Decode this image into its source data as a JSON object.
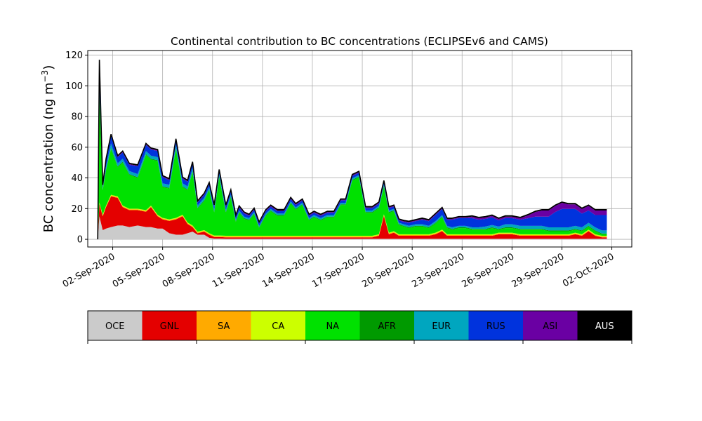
{
  "chart_data": {
    "type": "area",
    "stacked": true,
    "title": "Continental contribution to BC concentrations (ECLIPSEv6 and CAMS)",
    "ylabel": "BC concentration (ng m",
    "ylabel_superscript": "−3",
    "ylabel_close": ")",
    "ylim": [
      -5,
      123
    ],
    "xlim": [
      -1.5,
      31.2
    ],
    "yticks": [
      0,
      20,
      40,
      60,
      80,
      100,
      120
    ],
    "xticks": [
      {
        "x": 0,
        "label": "02-Sep-2020"
      },
      {
        "x": 3,
        "label": "05-Sep-2020"
      },
      {
        "x": 6,
        "label": "08-Sep-2020"
      },
      {
        "x": 9,
        "label": "11-Sep-2020"
      },
      {
        "x": 12,
        "label": "14-Sep-2020"
      },
      {
        "x": 15,
        "label": "17-Sep-2020"
      },
      {
        "x": 18,
        "label": "20-Sep-2020"
      },
      {
        "x": 21,
        "label": "23-Sep-2020"
      },
      {
        "x": 24,
        "label": "26-Sep-2020"
      },
      {
        "x": 27,
        "label": "29-Sep-2020"
      },
      {
        "x": 30,
        "label": "02-Oct-2020"
      }
    ],
    "grid": true,
    "x_days_since_02_sep_2020": [
      -0.9,
      -0.8,
      -0.6,
      -0.4,
      -0.1,
      0.3,
      0.6,
      1.0,
      1.5,
      2.0,
      2.3,
      2.7,
      3.0,
      3.4,
      3.8,
      4.2,
      4.5,
      4.8,
      5.1,
      5.5,
      5.8,
      6.1,
      6.4,
      6.8,
      7.1,
      7.4,
      7.6,
      7.9,
      8.2,
      8.5,
      8.8,
      9.2,
      9.5,
      9.9,
      10.3,
      10.7,
      11.0,
      11.4,
      11.8,
      12.1,
      12.5,
      12.9,
      13.3,
      13.7,
      14.0,
      14.4,
      14.8,
      15.2,
      15.6,
      16.0,
      16.3,
      16.6,
      16.9,
      17.2,
      17.5,
      17.8,
      18.2,
      18.6,
      19.0,
      19.4,
      19.8,
      20.1,
      20.4,
      20.8,
      21.2,
      21.6,
      22.0,
      22.4,
      22.8,
      23.2,
      23.6,
      24.0,
      24.5,
      25.0,
      25.4,
      25.8,
      26.2,
      26.6,
      27.0,
      27.4,
      27.8,
      28.2,
      28.6,
      29.0,
      29.4,
      29.7
    ],
    "series": [
      {
        "name": "OCE",
        "color": "#cbcbcb",
        "values": [
          0,
          15,
          6,
          7,
          8,
          9,
          9,
          8,
          9,
          8,
          8,
          7,
          7,
          4,
          3,
          3,
          4,
          5,
          3,
          3,
          1,
          0.5,
          0.5,
          0.3,
          0.3,
          0.3,
          0.3,
          0.3,
          0.3,
          0.3,
          0.3,
          0.3,
          0.3,
          0.3,
          0.3,
          0.3,
          0.3,
          0.3,
          0.3,
          0.3,
          0.3,
          0.3,
          0.3,
          0.3,
          0.3,
          0.3,
          0.3,
          0.3,
          0.3,
          0.3,
          0.3,
          0.3,
          0.3,
          0.3,
          0.3,
          0.3,
          0.3,
          0.3,
          0.3,
          0.3,
          0.3,
          0.3,
          0.3,
          0.3,
          0.3,
          0.3,
          0.3,
          0.3,
          0.3,
          0.3,
          0.3,
          0.3,
          0.3,
          0.3,
          0.3,
          0.3,
          0.3,
          0.3,
          0.3,
          0.3,
          0.3,
          0.3,
          0.3,
          0.3,
          0.3,
          0.3
        ]
      },
      {
        "name": "GNL",
        "color": "#e40000",
        "values": [
          0,
          8,
          9,
          14,
          20,
          18,
          12,
          11,
          10,
          10,
          13,
          8,
          6,
          8,
          10,
          12,
          6,
          3,
          1,
          2,
          2,
          1,
          1,
          1,
          1,
          1,
          1,
          1,
          1,
          1,
          1,
          1,
          1,
          1,
          1,
          1,
          1,
          1,
          1,
          1,
          1,
          1,
          1,
          1,
          1,
          1,
          1,
          1,
          1,
          2,
          15,
          3,
          4,
          2,
          2,
          2,
          2,
          2,
          2,
          3,
          5,
          2,
          2,
          2,
          2,
          2,
          2,
          2,
          2,
          3,
          3,
          3,
          2,
          2,
          2,
          2,
          2,
          2,
          2,
          2,
          3,
          2,
          5,
          2,
          1,
          1
        ]
      },
      {
        "name": "SA",
        "color": "#ffaa00",
        "values": [
          0,
          0.5,
          0.5,
          0.5,
          0.5,
          0.5,
          0.5,
          0.5,
          0.5,
          0.5,
          0.5,
          0.5,
          0.5,
          0.5,
          0.5,
          0.5,
          0.5,
          0.5,
          0.5,
          0.5,
          0.5,
          0.5,
          0.5,
          0.5,
          0.5,
          0.5,
          0.5,
          0.5,
          0.5,
          0.5,
          0.5,
          0.5,
          0.5,
          0.5,
          0.5,
          0.5,
          0.5,
          0.5,
          0.5,
          0.5,
          0.5,
          0.5,
          0.5,
          0.5,
          0.5,
          0.5,
          0.5,
          0.5,
          0.5,
          0.5,
          0.5,
          0.5,
          0.5,
          0.5,
          0.5,
          0.5,
          0.5,
          0.5,
          0.5,
          0.5,
          0.5,
          0.5,
          0.5,
          0.5,
          0.5,
          0.5,
          0.5,
          0.5,
          0.5,
          0.5,
          0.5,
          0.5,
          0.5,
          0.5,
          0.5,
          0.5,
          0.5,
          0.5,
          0.5,
          0.5,
          0.5,
          0.5,
          0.5,
          0.5,
          0.5,
          0.5
        ]
      },
      {
        "name": "CA",
        "color": "#ccff00",
        "values": [
          0,
          0.5,
          0.5,
          0.5,
          0.5,
          0.5,
          0.5,
          0.5,
          0.5,
          0.5,
          0.5,
          0.5,
          0.5,
          0.5,
          0.5,
          0.5,
          0.5,
          0.5,
          0.5,
          0.5,
          0.5,
          0.5,
          0.5,
          0.5,
          0.5,
          0.5,
          0.5,
          0.5,
          0.5,
          0.5,
          0.5,
          0.5,
          0.5,
          0.5,
          0.5,
          0.5,
          0.5,
          0.5,
          0.5,
          0.5,
          0.5,
          0.5,
          0.5,
          0.5,
          0.5,
          0.5,
          0.5,
          0.5,
          0.5,
          0.5,
          0.5,
          0.5,
          0.5,
          0.5,
          0.5,
          0.5,
          0.5,
          0.5,
          0.5,
          0.5,
          0.5,
          0.5,
          0.5,
          0.5,
          0.5,
          0.5,
          0.5,
          0.5,
          0.5,
          0.5,
          0.5,
          0.5,
          0.5,
          0.5,
          0.5,
          0.5,
          0.5,
          0.5,
          0.5,
          0.5,
          0.5,
          0.5,
          0.5,
          0.5,
          0.5,
          0.5
        ]
      },
      {
        "name": "NA",
        "color": "#00e100",
        "values": [
          0,
          70,
          16,
          23,
          30,
          19,
          28,
          22,
          20,
          36,
          30,
          35,
          20,
          20,
          45,
          18,
          21,
          35,
          15,
          19,
          28,
          15,
          38,
          15,
          25,
          9,
          15,
          11,
          10,
          14,
          5,
          13,
          16,
          13,
          13,
          21,
          17,
          20,
          10,
          12,
          10,
          12,
          12,
          20,
          20,
          36,
          38,
          15,
          15,
          17,
          18,
          13,
          13,
          6,
          5,
          4,
          5,
          5,
          4,
          6,
          8,
          4,
          3,
          4,
          4,
          3,
          3,
          3,
          4,
          2,
          3,
          3,
          3,
          3,
          3,
          3,
          2,
          2,
          2,
          2,
          2,
          2,
          2,
          2,
          1,
          1
        ]
      },
      {
        "name": "AFR",
        "color": "#009a00",
        "values": [
          0,
          1,
          0.5,
          0.5,
          0.5,
          0.5,
          0.5,
          0.5,
          0.5,
          0.5,
          0.5,
          0.5,
          0.5,
          0.5,
          0.5,
          0.5,
          0.5,
          0.5,
          0.5,
          0.5,
          0.5,
          0.5,
          0.5,
          0.5,
          0.5,
          0.5,
          0.5,
          0.5,
          0.5,
          0.5,
          0.5,
          0.5,
          0.5,
          0.5,
          0.5,
          0.5,
          0.5,
          0.5,
          0.5,
          0.5,
          0.5,
          0.5,
          0.5,
          0.5,
          0.5,
          0.5,
          0.5,
          0.5,
          0.5,
          0.5,
          0.5,
          0.5,
          0.5,
          0.5,
          0.5,
          0.5,
          0.5,
          0.5,
          0.5,
          0.5,
          0.5,
          0.5,
          0.5,
          0.5,
          0.5,
          0.5,
          0.5,
          0.5,
          0.5,
          0.5,
          0.5,
          0.5,
          0.5,
          0.5,
          0.5,
          0.5,
          0.5,
          0.5,
          0.5,
          0.5,
          0.5,
          0.5,
          0.5,
          0.5,
          0.5,
          0.5
        ]
      },
      {
        "name": "EUR",
        "color": "#00a6bf",
        "values": [
          0,
          3,
          1,
          2,
          3,
          2,
          2,
          2,
          2,
          2,
          2,
          2,
          2,
          2,
          2,
          2,
          2,
          2,
          1.5,
          1.5,
          1.5,
          1.5,
          1.5,
          1.5,
          1.5,
          1,
          1,
          1,
          1,
          1,
          1,
          1,
          1,
          1,
          1,
          1,
          1,
          1,
          1,
          1,
          1,
          1,
          1,
          1,
          1,
          1,
          1,
          1,
          1,
          1,
          1,
          1,
          1,
          1,
          1,
          1,
          1,
          1,
          1,
          1,
          1,
          1,
          1,
          1,
          1,
          1,
          1,
          1.5,
          1.5,
          1.5,
          2,
          2,
          2,
          2,
          2,
          2,
          2,
          2,
          2,
          2,
          2,
          2,
          2,
          2,
          2,
          2
        ]
      },
      {
        "name": "RUS",
        "color": "#0033dd",
        "values": [
          0,
          17,
          1,
          4,
          5,
          4,
          4,
          4,
          5,
          4,
          4,
          4,
          4,
          3,
          3,
          3,
          3,
          3,
          2,
          2,
          2,
          2,
          2,
          2,
          2,
          2,
          2,
          2,
          1.5,
          1.5,
          1.5,
          1.5,
          1.5,
          1.5,
          1.5,
          1.5,
          1.5,
          1.5,
          1.5,
          1.5,
          1.5,
          1.5,
          1.5,
          1.5,
          1.5,
          1.5,
          1.5,
          1.5,
          1.5,
          1.5,
          1.5,
          1.5,
          1.5,
          1.5,
          1.5,
          2,
          2,
          3,
          3,
          4,
          4,
          4,
          5,
          5,
          5,
          6,
          5,
          5,
          5,
          4,
          4,
          4,
          4,
          5,
          6,
          6,
          7,
          10,
          12,
          12,
          11,
          9,
          8,
          8,
          10,
          10
        ]
      },
      {
        "name": "ASI",
        "color": "#6a00a3",
        "values": [
          0,
          1,
          0.5,
          0.5,
          0.5,
          0.5,
          0.5,
          0.5,
          0.5,
          0.5,
          0.5,
          0.5,
          0.5,
          0.5,
          0.5,
          0.5,
          0.5,
          0.5,
          0.5,
          0.5,
          0.5,
          0.5,
          0.5,
          0.5,
          0.5,
          0.5,
          0.5,
          0.5,
          0.5,
          0.5,
          0.5,
          0.5,
          0.5,
          0.5,
          0.5,
          0.5,
          0.5,
          0.5,
          0.5,
          0.5,
          0.5,
          0.5,
          0.5,
          0.5,
          0.5,
          0.5,
          0.5,
          0.5,
          0.5,
          0.5,
          0.5,
          0.5,
          0.5,
          0.5,
          0.5,
          0.5,
          0.5,
          0.5,
          0.5,
          0.5,
          0.5,
          0.5,
          0.5,
          0.5,
          0.5,
          1,
          1,
          1,
          1,
          1,
          1,
          1,
          1,
          2,
          3,
          4,
          4,
          4,
          4,
          3,
          3,
          3,
          3,
          3,
          3,
          3
        ]
      },
      {
        "name": "AUS",
        "color": "#000000",
        "values": [
          0,
          1,
          0.5,
          0.5,
          0.5,
          0.5,
          0.5,
          0.5,
          0.5,
          0.5,
          0.5,
          0.5,
          0.5,
          0.5,
          0.5,
          0.5,
          0.5,
          0.5,
          0.5,
          0.5,
          0.5,
          0.5,
          0.5,
          0.5,
          0.5,
          0.5,
          0.5,
          0.5,
          0.5,
          0.5,
          0.5,
          0.5,
          0.5,
          0.5,
          0.5,
          0.5,
          0.5,
          0.5,
          0.5,
          0.5,
          0.5,
          0.5,
          0.5,
          0.5,
          0.5,
          0.5,
          0.5,
          0.5,
          0.5,
          0.5,
          0.5,
          0.5,
          0.5,
          0.5,
          0.5,
          0.5,
          0.5,
          0.5,
          0.5,
          0.5,
          0.5,
          0.5,
          0.5,
          0.5,
          0.5,
          0.5,
          0.5,
          0.5,
          0.5,
          0.5,
          0.5,
          0.5,
          0.5,
          0.5,
          0.5,
          0.5,
          0.5,
          0.5,
          0.5,
          0.5,
          0.5,
          0.5,
          0.5,
          0.5,
          0.5,
          0.5
        ]
      }
    ],
    "legend": {
      "placement": "below-plot",
      "items": [
        "OCE",
        "GNL",
        "SA",
        "CA",
        "NA",
        "AFR",
        "EUR",
        "RUS",
        "ASI",
        "AUS"
      ]
    }
  }
}
